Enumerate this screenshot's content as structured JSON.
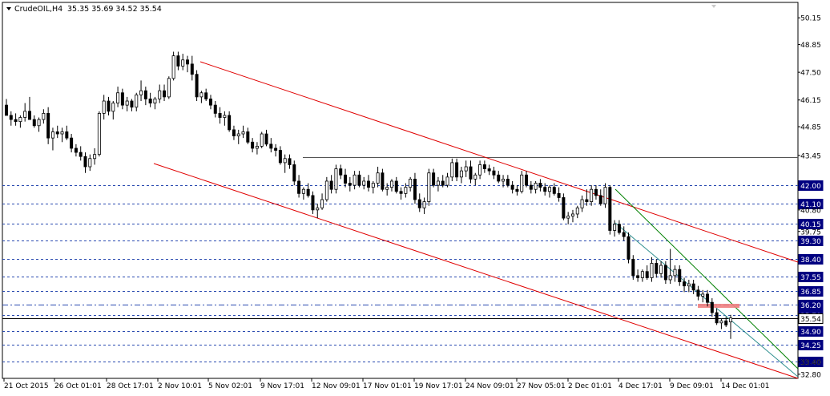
{
  "header": {
    "symbol": "CrudeOIL,H4",
    "ohlc": "35.35 35.69 34.52 35.54"
  },
  "colors": {
    "background": "#ffffff",
    "candle": "#000000",
    "channel": "#e00000",
    "trend_green": "#008000",
    "trend_teal": "#2f8f8f",
    "hline": "#2a4ab0",
    "resistance": "#555555",
    "price_tag": "#000080",
    "price_tag_text": "#ffffff",
    "zone": "#f08080"
  },
  "chart_data": {
    "type": "candlestick",
    "symbol": "CrudeOIL",
    "timeframe": "H4",
    "ylim": [
      32.6,
      50.9
    ],
    "y_ticks": [
      50.15,
      48.85,
      47.5,
      46.15,
      44.85,
      43.45,
      40.8,
      39.75,
      33.4,
      32.8
    ],
    "x_ticks": [
      "21 Oct 2015",
      "26 Oct 01:01",
      "28 Oct 17:01",
      "2 Nov 10:01",
      "5 Nov 02:01",
      "9 Nov 17:01",
      "12 Nov 09:01",
      "17 Nov 01:01",
      "19 Nov 17:01",
      "24 Nov 09:01",
      "27 Nov 05:01",
      "2 Dec 01:01",
      "4 Dec 17:01",
      "9 Dec 09:01",
      "14 Dec 01:01"
    ],
    "horizontal_levels": [
      {
        "value": 42.0,
        "label": "42.00",
        "style": "dash",
        "tag": "dark"
      },
      {
        "value": 41.1,
        "label": "41.10",
        "style": "dash",
        "tag": "dark"
      },
      {
        "value": 40.15,
        "label": "40.15",
        "style": "dash",
        "tag": "dark"
      },
      {
        "value": 39.3,
        "label": "39.30",
        "style": "dash",
        "tag": "dark"
      },
      {
        "value": 38.4,
        "label": "38.40",
        "style": "dash",
        "tag": "dark"
      },
      {
        "value": 37.55,
        "label": "37.55",
        "style": "dash",
        "tag": "dark"
      },
      {
        "value": 36.85,
        "label": "36.85",
        "style": "dash",
        "tag": "dark"
      },
      {
        "value": 36.2,
        "label": "36.20",
        "style": "dashdot",
        "tag": "dark"
      },
      {
        "value": 35.7,
        "label": "35.70",
        "style": "dash",
        "tag": "dark"
      },
      {
        "value": 35.54,
        "label": "35.54",
        "style": "solid",
        "tag": "white"
      },
      {
        "value": 34.9,
        "label": "34.90",
        "style": "dash",
        "tag": "dark"
      },
      {
        "value": 34.25,
        "label": "34.25",
        "style": "dash",
        "tag": "dark"
      },
      {
        "value": 33.4,
        "label": "33.40",
        "style": "dash",
        "tag": "dark"
      },
      {
        "value": 43.35,
        "label": "",
        "style": "resistance",
        "tag": "none"
      }
    ],
    "candles": [
      [
        45.9,
        46.2,
        45.5,
        45.4
      ],
      [
        45.4,
        45.6,
        44.9,
        45.2
      ],
      [
        45.2,
        45.5,
        44.9,
        45.1
      ],
      [
        45.1,
        45.4,
        44.8,
        45.3
      ],
      [
        45.3,
        46.0,
        45.1,
        45.6
      ],
      [
        45.6,
        46.3,
        45.3,
        45.2
      ],
      [
        45.2,
        45.4,
        44.8,
        44.9
      ],
      [
        44.9,
        45.3,
        44.6,
        45.2
      ],
      [
        45.2,
        45.7,
        45.0,
        45.5
      ],
      [
        45.5,
        45.8,
        44.0,
        44.3
      ],
      [
        44.3,
        44.8,
        43.7,
        44.6
      ],
      [
        44.6,
        44.9,
        44.3,
        44.5
      ],
      [
        44.5,
        44.8,
        44.1,
        44.6
      ],
      [
        44.6,
        44.9,
        44.2,
        44.3
      ],
      [
        44.3,
        44.5,
        43.6,
        43.8
      ],
      [
        43.8,
        44.0,
        43.4,
        43.6
      ],
      [
        43.6,
        43.9,
        43.2,
        43.4
      ],
      [
        43.4,
        43.6,
        42.6,
        42.9
      ],
      [
        42.9,
        43.5,
        42.7,
        43.3
      ],
      [
        43.3,
        43.8,
        43.0,
        43.5
      ],
      [
        43.5,
        45.6,
        43.4,
        45.5
      ],
      [
        45.5,
        46.4,
        45.2,
        46.1
      ],
      [
        46.1,
        46.3,
        45.4,
        45.6
      ],
      [
        45.6,
        46.1,
        45.2,
        46.0
      ],
      [
        46.0,
        46.8,
        45.8,
        46.5
      ],
      [
        46.5,
        46.7,
        45.7,
        45.9
      ],
      [
        45.9,
        46.3,
        45.6,
        46.1
      ],
      [
        46.1,
        46.2,
        45.6,
        45.8
      ],
      [
        45.8,
        46.5,
        45.6,
        46.4
      ],
      [
        46.4,
        47.1,
        46.1,
        46.6
      ],
      [
        46.6,
        46.8,
        45.9,
        46.2
      ],
      [
        46.2,
        46.5,
        45.8,
        46.0
      ],
      [
        46.0,
        46.3,
        45.7,
        46.2
      ],
      [
        46.2,
        46.9,
        46.0,
        46.6
      ],
      [
        46.6,
        46.9,
        46.1,
        46.3
      ],
      [
        46.3,
        47.3,
        46.2,
        47.2
      ],
      [
        47.2,
        48.5,
        47.1,
        48.3
      ],
      [
        48.3,
        48.5,
        47.6,
        47.8
      ],
      [
        47.8,
        48.4,
        47.6,
        48.1
      ],
      [
        48.1,
        48.3,
        47.5,
        47.9
      ],
      [
        47.9,
        48.3,
        47.1,
        47.4
      ],
      [
        47.4,
        47.6,
        46.1,
        46.3
      ],
      [
        46.3,
        46.6,
        46.0,
        46.5
      ],
      [
        46.5,
        46.7,
        46.1,
        46.2
      ],
      [
        46.2,
        46.4,
        45.7,
        45.9
      ],
      [
        45.9,
        46.1,
        45.3,
        45.5
      ],
      [
        45.5,
        45.8,
        45.0,
        45.3
      ],
      [
        45.3,
        45.6,
        44.9,
        45.4
      ],
      [
        45.4,
        45.6,
        44.6,
        44.7
      ],
      [
        44.7,
        44.9,
        44.2,
        44.4
      ],
      [
        44.4,
        44.7,
        44.0,
        44.5
      ],
      [
        44.5,
        44.9,
        44.3,
        44.6
      ],
      [
        44.6,
        44.8,
        44.0,
        44.1
      ],
      [
        44.1,
        44.3,
        43.6,
        43.8
      ],
      [
        43.8,
        44.1,
        43.5,
        43.9
      ],
      [
        43.9,
        44.6,
        43.8,
        44.5
      ],
      [
        44.5,
        44.7,
        43.9,
        44.0
      ],
      [
        44.0,
        44.3,
        43.6,
        43.8
      ],
      [
        43.8,
        44.0,
        43.4,
        43.7
      ],
      [
        43.7,
        43.9,
        43.0,
        43.1
      ],
      [
        43.1,
        43.5,
        42.6,
        43.3
      ],
      [
        43.3,
        43.5,
        42.8,
        43.0
      ],
      [
        43.0,
        43.2,
        42.0,
        42.2
      ],
      [
        42.2,
        42.5,
        41.4,
        41.6
      ],
      [
        41.6,
        41.9,
        41.3,
        41.8
      ],
      [
        41.8,
        42.1,
        41.4,
        41.5
      ],
      [
        41.5,
        41.7,
        40.6,
        40.8
      ],
      [
        40.8,
        41.1,
        40.4,
        40.9
      ],
      [
        40.9,
        41.6,
        40.8,
        41.3
      ],
      [
        41.3,
        42.4,
        41.2,
        42.2
      ],
      [
        42.2,
        42.5,
        41.6,
        41.8
      ],
      [
        41.8,
        43.0,
        41.6,
        42.8
      ],
      [
        42.8,
        43.0,
        42.3,
        42.5
      ],
      [
        42.5,
        42.8,
        41.9,
        42.1
      ],
      [
        42.1,
        42.4,
        41.7,
        42.0
      ],
      [
        42.0,
        42.7,
        41.8,
        42.5
      ],
      [
        42.5,
        42.7,
        41.9,
        42.0
      ],
      [
        42.0,
        42.4,
        41.8,
        42.2
      ],
      [
        42.2,
        42.5,
        41.7,
        41.9
      ],
      [
        41.9,
        42.2,
        41.6,
        42.1
      ],
      [
        42.1,
        42.9,
        41.9,
        42.6
      ],
      [
        42.6,
        42.8,
        41.7,
        41.8
      ],
      [
        41.8,
        42.1,
        41.5,
        41.9
      ],
      [
        41.9,
        42.3,
        41.7,
        42.2
      ],
      [
        42.2,
        42.4,
        41.6,
        41.7
      ],
      [
        41.7,
        41.9,
        41.3,
        41.6
      ],
      [
        41.6,
        42.1,
        41.4,
        41.9
      ],
      [
        41.9,
        42.4,
        41.7,
        42.3
      ],
      [
        42.3,
        42.6,
        41.1,
        41.3
      ],
      [
        41.3,
        41.6,
        40.7,
        40.9
      ],
      [
        40.9,
        41.4,
        40.6,
        41.2
      ],
      [
        41.2,
        42.8,
        41.0,
        42.6
      ],
      [
        42.6,
        42.8,
        41.9,
        42.0
      ],
      [
        42.0,
        42.4,
        41.7,
        42.2
      ],
      [
        42.2,
        42.5,
        41.9,
        42.0
      ],
      [
        42.0,
        42.6,
        41.9,
        42.4
      ],
      [
        42.4,
        43.3,
        42.2,
        43.1
      ],
      [
        43.1,
        43.3,
        42.2,
        42.4
      ],
      [
        42.4,
        42.9,
        42.1,
        42.7
      ],
      [
        42.7,
        43.2,
        42.4,
        42.9
      ],
      [
        42.9,
        43.2,
        42.1,
        42.3
      ],
      [
        42.3,
        42.6,
        42.0,
        42.5
      ],
      [
        42.5,
        43.2,
        42.3,
        43.0
      ],
      [
        43.0,
        43.2,
        42.6,
        42.8
      ],
      [
        42.8,
        43.0,
        42.5,
        42.7
      ],
      [
        42.7,
        42.9,
        42.3,
        42.5
      ],
      [
        42.5,
        42.7,
        42.1,
        42.2
      ],
      [
        42.2,
        42.5,
        41.9,
        42.3
      ],
      [
        42.3,
        42.5,
        41.9,
        42.0
      ],
      [
        42.0,
        42.2,
        41.6,
        41.8
      ],
      [
        41.8,
        42.0,
        41.5,
        41.7
      ],
      [
        41.7,
        42.7,
        41.6,
        42.5
      ],
      [
        42.5,
        42.7,
        41.9,
        42.0
      ],
      [
        42.0,
        42.2,
        41.6,
        41.8
      ],
      [
        41.8,
        42.2,
        41.6,
        42.1
      ],
      [
        42.1,
        42.3,
        41.7,
        41.9
      ],
      [
        41.9,
        42.1,
        41.5,
        41.7
      ],
      [
        41.7,
        42.0,
        41.4,
        41.9
      ],
      [
        41.9,
        42.1,
        41.5,
        41.6
      ],
      [
        41.6,
        41.9,
        41.2,
        41.4
      ],
      [
        41.4,
        41.6,
        40.3,
        40.4
      ],
      [
        40.4,
        40.7,
        40.1,
        40.5
      ],
      [
        40.5,
        40.8,
        40.2,
        40.6
      ],
      [
        40.6,
        41.0,
        40.4,
        40.9
      ],
      [
        40.9,
        41.5,
        40.7,
        41.3
      ],
      [
        41.3,
        41.8,
        41.0,
        41.2
      ],
      [
        41.2,
        42.0,
        41.0,
        41.8
      ],
      [
        41.8,
        42.0,
        41.3,
        41.5
      ],
      [
        41.5,
        41.8,
        41.0,
        41.1
      ],
      [
        41.1,
        42.1,
        40.9,
        41.9
      ],
      [
        41.9,
        42.0,
        39.6,
        39.8
      ],
      [
        39.8,
        40.3,
        39.5,
        40.1
      ],
      [
        40.1,
        40.3,
        39.6,
        39.7
      ],
      [
        39.7,
        40.0,
        39.3,
        39.5
      ],
      [
        39.5,
        39.7,
        38.2,
        38.4
      ],
      [
        38.4,
        38.6,
        37.4,
        37.6
      ],
      [
        37.6,
        37.9,
        37.3,
        37.5
      ],
      [
        37.5,
        37.9,
        37.3,
        37.8
      ],
      [
        37.8,
        38.1,
        37.4,
        37.5
      ],
      [
        37.5,
        38.5,
        37.3,
        38.2
      ],
      [
        38.2,
        38.4,
        37.5,
        37.7
      ],
      [
        37.7,
        38.3,
        37.5,
        38.1
      ],
      [
        38.1,
        38.3,
        37.2,
        37.4
      ],
      [
        37.4,
        38.9,
        37.2,
        37.6
      ],
      [
        37.6,
        38.1,
        37.3,
        37.9
      ],
      [
        37.9,
        38.1,
        37.1,
        37.3
      ],
      [
        37.3,
        37.5,
        36.8,
        37.1
      ],
      [
        37.1,
        37.4,
        36.8,
        37.2
      ],
      [
        37.2,
        37.4,
        36.7,
        36.9
      ],
      [
        36.9,
        37.1,
        36.4,
        36.6
      ],
      [
        36.6,
        36.9,
        36.3,
        36.7
      ],
      [
        36.7,
        36.9,
        36.1,
        36.3
      ],
      [
        36.3,
        36.5,
        35.6,
        35.8
      ],
      [
        35.8,
        36.0,
        35.2,
        35.3
      ],
      [
        35.3,
        35.5,
        35.0,
        35.4
      ],
      [
        35.4,
        35.6,
        35.1,
        35.2
      ],
      [
        35.35,
        35.69,
        34.52,
        35.54
      ]
    ]
  }
}
